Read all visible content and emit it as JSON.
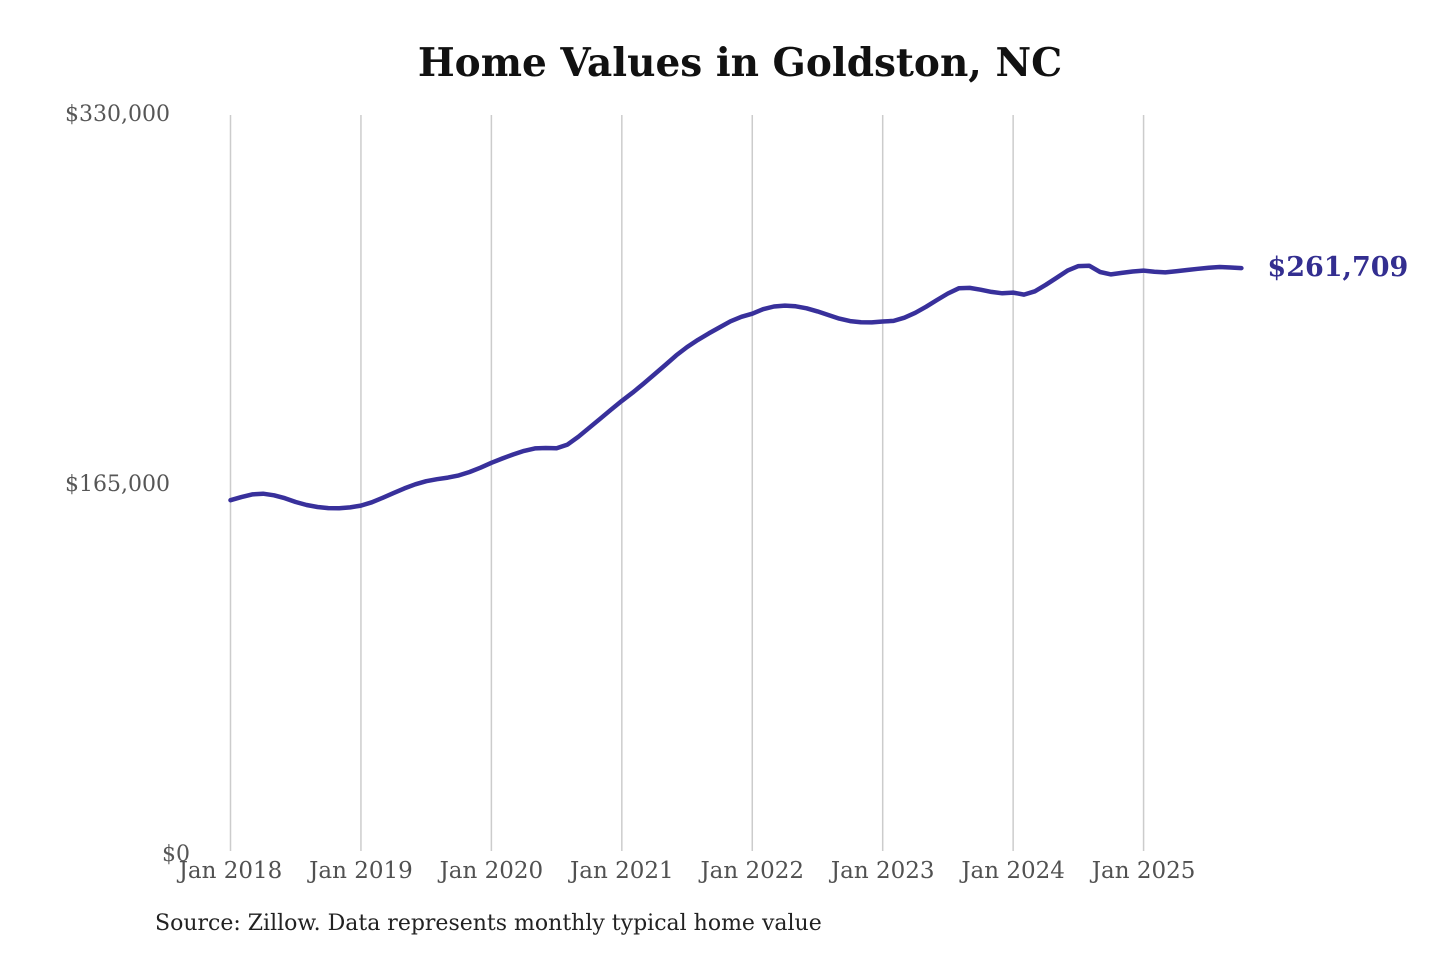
{
  "title": "Home Values in Goldston, NC",
  "source_note": "Source: Zillow. Data represents monthly typical home value",
  "chart_data": {
    "type": "line",
    "title": "Home Values in Goldston, NC",
    "series_name": "Monthly typical home value",
    "x_start": "Jan 2018",
    "x_end": "Oct 2025",
    "frequency": "monthly",
    "x_tick_labels": [
      "Jan 2018",
      "Jan 2019",
      "Jan 2020",
      "Jan 2021",
      "Jan 2022",
      "Jan 2023",
      "Jan 2024",
      "Jan 2025"
    ],
    "x_tick_month_indices": [
      0,
      12,
      24,
      36,
      48,
      60,
      72,
      84
    ],
    "y_ticks": [
      {
        "label": "$330,000",
        "value": 330000
      },
      {
        "label": "$165,000",
        "value": 165000
      },
      {
        "label": "$0",
        "value": 0
      }
    ],
    "ylim": [
      0,
      330000
    ],
    "grid": "vertical-only",
    "legend": "none",
    "end_label": "$261,709",
    "end_value": 261709,
    "colors": {
      "line": "#38309b",
      "end_label": "#332e90",
      "grid": "#cccccc",
      "tick_label": "#565656",
      "title": "#111111",
      "source": "#222222",
      "background": "#ffffff"
    },
    "monthly_values": [
      158200,
      159600,
      160800,
      161100,
      160400,
      159100,
      157400,
      156100,
      155200,
      154700,
      154600,
      155000,
      155800,
      157300,
      159300,
      161400,
      163500,
      165300,
      166700,
      167600,
      168300,
      169300,
      170800,
      172700,
      174900,
      176800,
      178600,
      180200,
      181300,
      181500,
      181400,
      183000,
      186500,
      190500,
      194500,
      198600,
      202500,
      206200,
      210200,
      214300,
      218500,
      222800,
      226500,
      229700,
      232600,
      235300,
      238000,
      240000,
      241400,
      243400,
      244600,
      245000,
      244700,
      243800,
      242400,
      240800,
      239200,
      238100,
      237600,
      237500,
      237900,
      238200,
      239600,
      241800,
      244500,
      247500,
      250400,
      252700,
      252900,
      252100,
      251100,
      250500,
      250800,
      249900,
      251400,
      254300,
      257400,
      260600,
      262600,
      262800,
      260000,
      258900,
      259600,
      260200,
      260600,
      260100,
      259800,
      260300,
      260900,
      261400,
      261900,
      262200,
      262000,
      261709
    ]
  }
}
